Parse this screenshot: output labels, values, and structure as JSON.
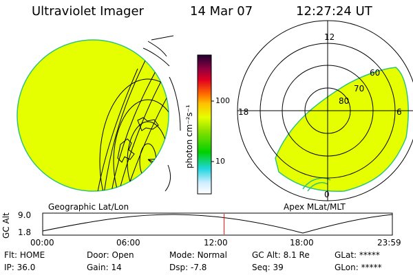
{
  "header": {
    "instrument": "Ultraviolet Imager",
    "date": "14 Mar 07",
    "time": "12:27:24 UT"
  },
  "colorbar": {
    "unit_label": "photon cm⁻²s⁻¹",
    "ticks": [
      "100",
      "10"
    ]
  },
  "left_panel": {
    "label": "Geographic Lat/Lon"
  },
  "right_panel": {
    "label": "Apex MLat/MLT",
    "mlt_labels": [
      "12",
      "18",
      "6",
      "0"
    ],
    "mlat_labels": [
      "60",
      "70",
      "80"
    ]
  },
  "altitude_plot": {
    "ylabel": "GC Alt",
    "yticks": [
      "9.0",
      "1.8"
    ],
    "xticks": [
      "00:00",
      "06:00",
      "12:00",
      "18:00",
      "23:59"
    ],
    "current_time_fraction": 0.519
  },
  "status": {
    "row1": [
      {
        "key": "Flt:",
        "value": "HOME"
      },
      {
        "key": "Door:",
        "value": "Open"
      },
      {
        "key": "Mode:",
        "value": "Normal"
      },
      {
        "key": "GC Alt:",
        "value": "8.1 Re"
      },
      {
        "key": "GLat:",
        "value": "*****"
      }
    ],
    "row2": [
      {
        "key": "IP:",
        "value": "36.0"
      },
      {
        "key": "Gain:",
        "value": "14"
      },
      {
        "key": "Dsp:",
        "value": "-7.8"
      },
      {
        "key": "Seq:",
        "value": "39"
      },
      {
        "key": "GLon:",
        "value": "*****"
      }
    ]
  },
  "colors": {
    "image_fill": "#e6ff00",
    "edge": "#2ec47a",
    "marker": "#ff0000"
  }
}
